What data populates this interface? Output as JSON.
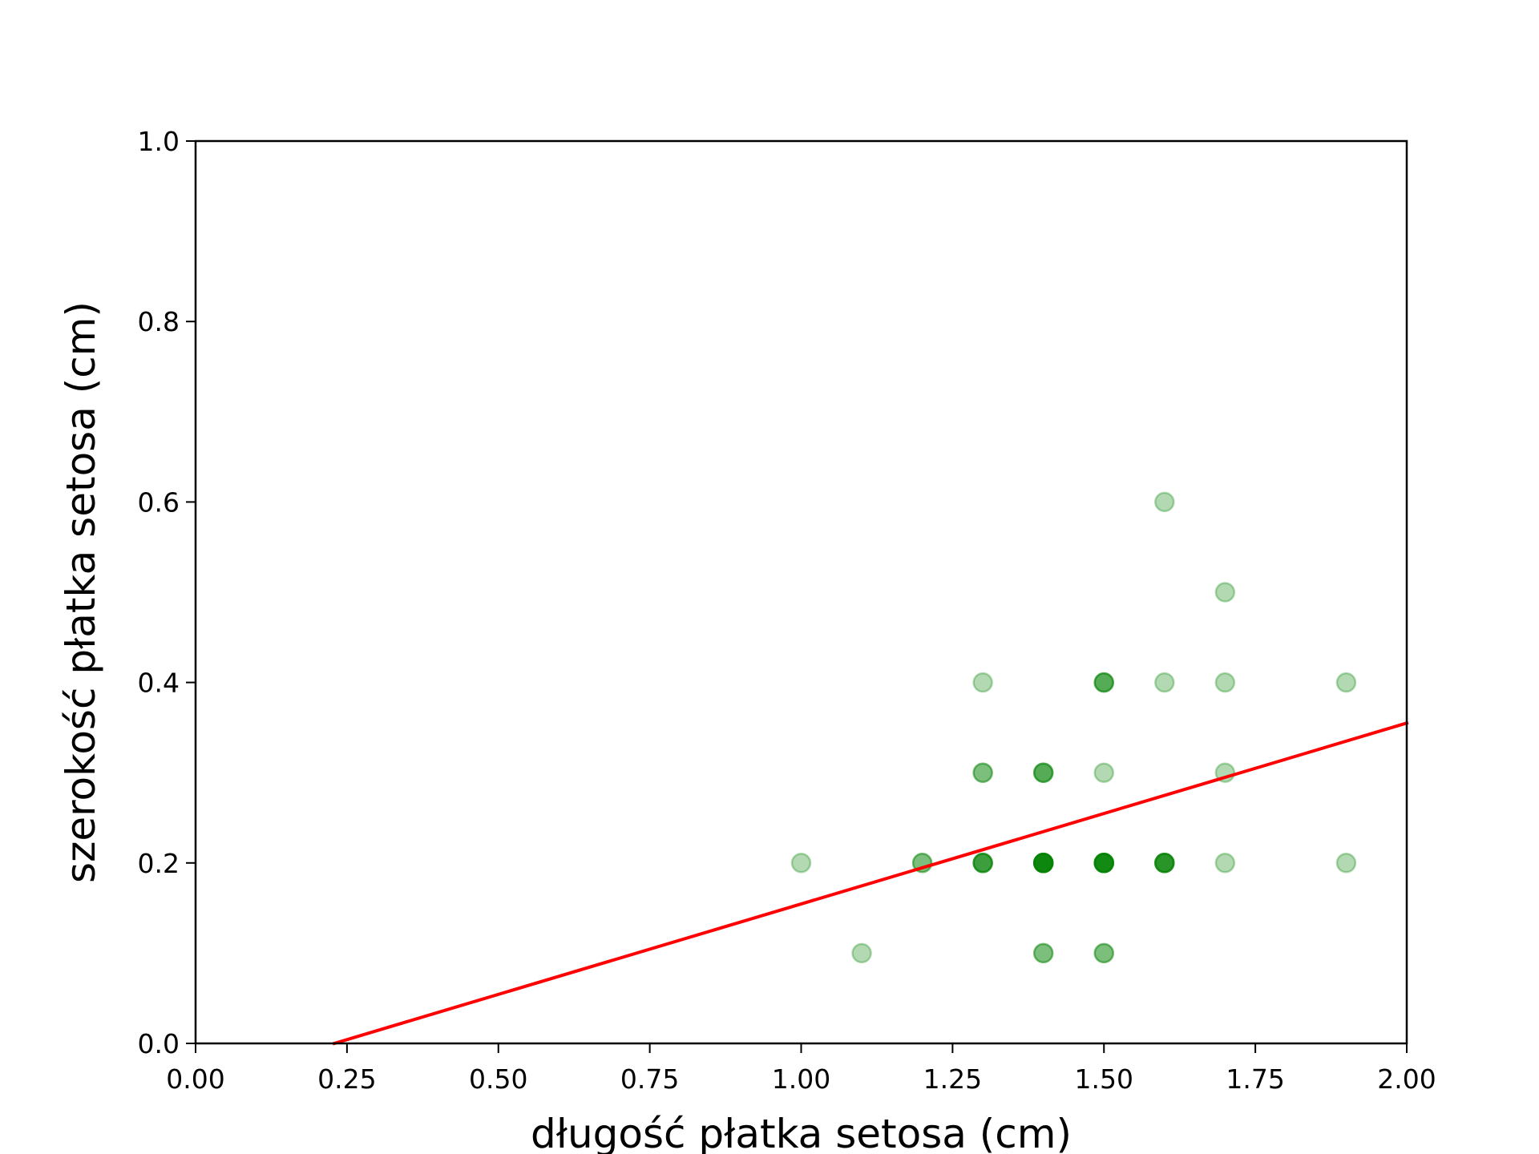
{
  "chart_data": {
    "type": "scatter",
    "xlabel": "długość płatka setosa (cm)",
    "ylabel": "szerokość płatka setosa (cm)",
    "xlim": [
      0.0,
      2.0
    ],
    "ylim": [
      0.0,
      1.0
    ],
    "x_ticks": [
      "0.00",
      "0.25",
      "0.50",
      "0.75",
      "1.00",
      "1.25",
      "1.50",
      "1.75",
      "2.00"
    ],
    "y_ticks": [
      "0.0",
      "0.2",
      "0.4",
      "0.6",
      "0.8",
      "1.0"
    ],
    "grid": false,
    "series": [
      {
        "kind": "points",
        "color": "#008000",
        "opacity": 0.3,
        "x": [
          1.4,
          1.4,
          1.3,
          1.5,
          1.4,
          1.7,
          1.4,
          1.5,
          1.4,
          1.5,
          1.5,
          1.6,
          1.4,
          1.1,
          1.2,
          1.5,
          1.3,
          1.4,
          1.7,
          1.5,
          1.7,
          1.5,
          1.0,
          1.7,
          1.9,
          1.6,
          1.6,
          1.5,
          1.4,
          1.6,
          1.6,
          1.5,
          1.5,
          1.4,
          1.5,
          1.2,
          1.3,
          1.4,
          1.3,
          1.5,
          1.3,
          1.3,
          1.3,
          1.6,
          1.9,
          1.4,
          1.6,
          1.4,
          1.5,
          1.4
        ],
        "y": [
          0.2,
          0.2,
          0.2,
          0.2,
          0.2,
          0.4,
          0.3,
          0.2,
          0.2,
          0.1,
          0.2,
          0.2,
          0.1,
          0.1,
          0.2,
          0.4,
          0.4,
          0.3,
          0.3,
          0.3,
          0.2,
          0.4,
          0.2,
          0.5,
          0.2,
          0.2,
          0.4,
          0.2,
          0.2,
          0.2,
          0.2,
          0.4,
          0.1,
          0.2,
          0.2,
          0.2,
          0.2,
          0.1,
          0.2,
          0.2,
          0.3,
          0.3,
          0.2,
          0.6,
          0.4,
          0.3,
          0.2,
          0.2,
          0.2,
          0.2
        ]
      },
      {
        "kind": "line",
        "color": "#ff0000",
        "x": [
          0.229,
          2.0
        ],
        "y": [
          0.0,
          0.355
        ]
      }
    ]
  }
}
